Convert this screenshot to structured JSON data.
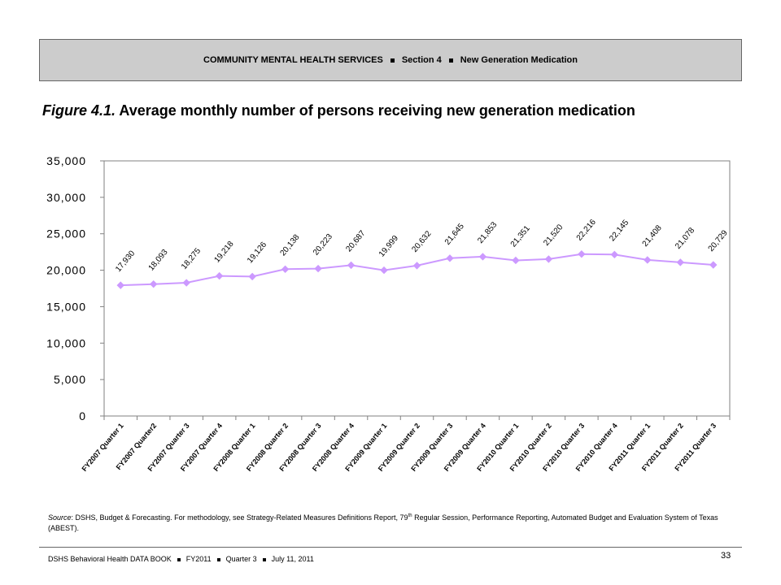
{
  "header": {
    "section_title": "COMMUNITY MENTAL HEALTH SERVICES",
    "section": "Section 4",
    "topic": "New Generation Medication"
  },
  "figure": {
    "number": "Figure 4.1.",
    "title": "Average monthly number of persons receiving new generation medication"
  },
  "chart_data": {
    "type": "line",
    "title": "",
    "xlabel": "",
    "ylabel": "",
    "ylim": [
      0,
      35000
    ],
    "yticks": [
      0,
      5000,
      10000,
      15000,
      20000,
      25000,
      30000,
      35000
    ],
    "ytick_labels": [
      "0",
      "5,000",
      "10,000",
      "15,000",
      "20,000",
      "25,000",
      "30,000",
      "35,000"
    ],
    "grid": false,
    "legend": "none",
    "series_color": "#cc99ff",
    "categories": [
      "FY2007 Quarter 1",
      "FY2007 Quarter2",
      "FY2007 Quarter 3",
      "FY2007 Quarter 4",
      "FY2008 Quarter 1",
      "FY2008 Quarter 2",
      "FY2008 Quarter 3",
      "FY2008 Quarter 4",
      "FY2009 Quarter 1",
      "FY2009 Quarter 2",
      "FY2009 Quarter 3",
      "FY2009 Quarter 4",
      "FY2010 Quarter 1",
      "FY2010 Quarter 2",
      "FY2010 Quarter 3",
      "FY2010 Quarter 4",
      "FY2011 Quarter 1",
      "FY2011 Quarter 2",
      "FY2011 Quarter 3"
    ],
    "values": [
      17930,
      18093,
      18275,
      19218,
      19126,
      20138,
      20223,
      20687,
      19999,
      20632,
      21645,
      21853,
      21351,
      21520,
      22216,
      22145,
      21408,
      21078,
      20729
    ],
    "data_labels": [
      "17,930",
      "18,093",
      "18,275",
      "19,218",
      "19,126",
      "20,138",
      "20,223",
      "20,687",
      "19,999",
      "20,632",
      "21,645",
      "21,853",
      "21,351",
      "21,520",
      "22,216",
      "22,145",
      "21,408",
      "21,078",
      "20,729"
    ]
  },
  "source": {
    "label": "Source",
    "text": ": DSHS, Budget & Forecasting. For methodology, see Strategy-Related Measures Definitions Report, 79",
    "superscript": "th",
    "text2": " Regular Session, Performance Reporting, Automated Budget and Evaluation System of Texas (ABEST)."
  },
  "footer": {
    "book": "DSHS Behavioral Health DATA BOOK",
    "fiscal_year": "FY2011",
    "quarter": "Quarter 3",
    "date": "July 11, 2011",
    "page_number": "33"
  }
}
